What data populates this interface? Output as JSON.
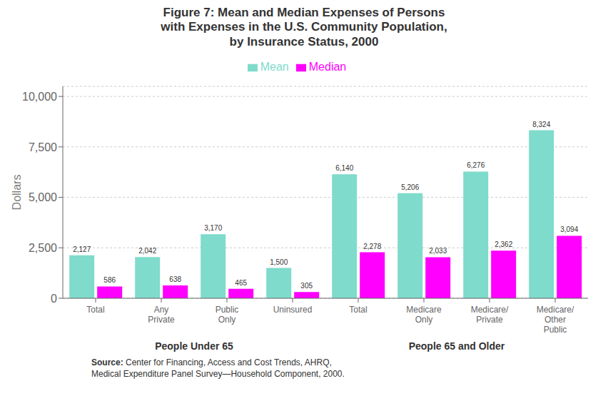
{
  "chart_data": {
    "type": "bar",
    "title": "Figure 7: Mean and Median Expenses of Persons\nwith Expenses in the U.S. Community Population,\nby Insurance Status, 2000",
    "categories": [
      "Total",
      "Any\nPrivate",
      "Public\nOnly",
      "Uninsured",
      "Total",
      "Medicare\nOnly",
      "Medicare/\nPrivate",
      "Medicare/\nOther\nPublic"
    ],
    "category_groups": [
      "People Under 65",
      "People Under 65",
      "People Under 65",
      "People Under 65",
      "People 65 and Older",
      "People 65 and Older",
      "People 65 and Older",
      "People 65 and Older"
    ],
    "series": [
      {
        "name": "Mean",
        "color": "#7FDBCC",
        "values": [
          2127,
          2042,
          3170,
          1500,
          6140,
          5206,
          6276,
          8324
        ],
        "value_labels": [
          "2,127",
          "2,042",
          "3,170",
          "1,500",
          "6,140",
          "5,206",
          "6,276",
          "8,324"
        ]
      },
      {
        "name": "Median",
        "color": "#FF00FF",
        "values": [
          586,
          638,
          465,
          305,
          2278,
          2033,
          2362,
          3094
        ],
        "value_labels": [
          "586",
          "638",
          "465",
          "305",
          "2,278",
          "2,033",
          "2,362",
          "3,094"
        ]
      }
    ],
    "ylabel": "Dollars",
    "ylim": [
      0,
      10500
    ],
    "yticks": [
      0,
      {
        "value": 2500,
        "label": "2,500"
      },
      {
        "value": 5000,
        "label": "5,000"
      },
      {
        "value": 7500,
        "label": "7,500"
      },
      {
        "value": 10000,
        "label": "10,000"
      }
    ],
    "grid": true,
    "legend": "top",
    "data_labels": true,
    "annotations": [
      "Source:",
      " Center for Financing, Access and Cost Trends, AHRQ,\nMedical Expenditure Panel Survey—Household Component, 2000."
    ]
  }
}
